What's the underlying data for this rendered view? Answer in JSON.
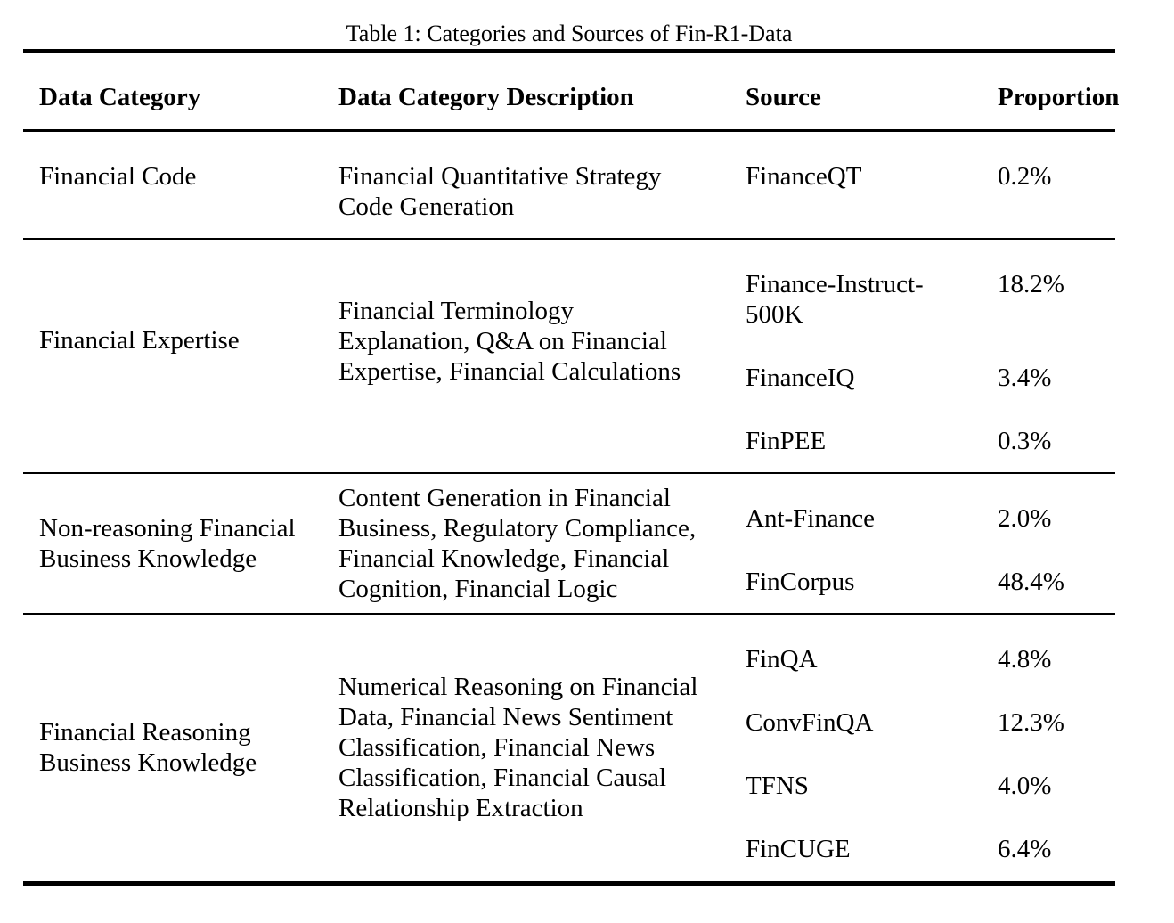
{
  "caption": "Table 1: Categories and Sources of Fin-R1-Data",
  "headers": [
    "Data Category",
    "Data Category Description",
    "Source",
    "Proportion"
  ],
  "groups": [
    {
      "category": [
        "Financial Code"
      ],
      "description": [
        "Financial Quantitative Strategy",
        "Code Generation"
      ],
      "rows": [
        {
          "source": [
            "FinanceQT"
          ],
          "proportion": "0.2%"
        }
      ]
    },
    {
      "category": [
        "Financial Expertise"
      ],
      "description": [
        "Financial Terminology",
        "Explanation, Q&A on Financial",
        "Expertise, Financial Calculations"
      ],
      "rows": [
        {
          "source": [
            "Finance-Instruct-",
            "500K"
          ],
          "proportion": "18.2%"
        },
        {
          "source": [
            "FinanceIQ"
          ],
          "proportion": "3.4%"
        },
        {
          "source": [
            "FinPEE"
          ],
          "proportion": "0.3%"
        }
      ]
    },
    {
      "category": [
        "Non-reasoning Financial",
        "Business Knowledge"
      ],
      "description": [
        "Content Generation in Financial",
        "Business, Regulatory Compliance,",
        "Financial Knowledge, Financial",
        "Cognition, Financial Logic"
      ],
      "rows": [
        {
          "source": [
            "Ant-Finance"
          ],
          "proportion": "2.0%"
        },
        {
          "source": [
            "FinCorpus"
          ],
          "proportion": "48.4%"
        }
      ]
    },
    {
      "category": [
        "Financial Reasoning",
        "Business Knowledge"
      ],
      "description": [
        "Numerical Reasoning on Financial",
        "Data, Financial News Sentiment",
        "Classification, Financial News",
        "Classification, Financial Causal",
        "Relationship Extraction"
      ],
      "rows": [
        {
          "source": [
            "FinQA"
          ],
          "proportion": "4.8%"
        },
        {
          "source": [
            "ConvFinQA"
          ],
          "proportion": "12.3%"
        },
        {
          "source": [
            "TFNS"
          ],
          "proportion": "4.0%"
        },
        {
          "source": [
            "FinCUGE"
          ],
          "proportion": "6.4%"
        }
      ]
    }
  ]
}
